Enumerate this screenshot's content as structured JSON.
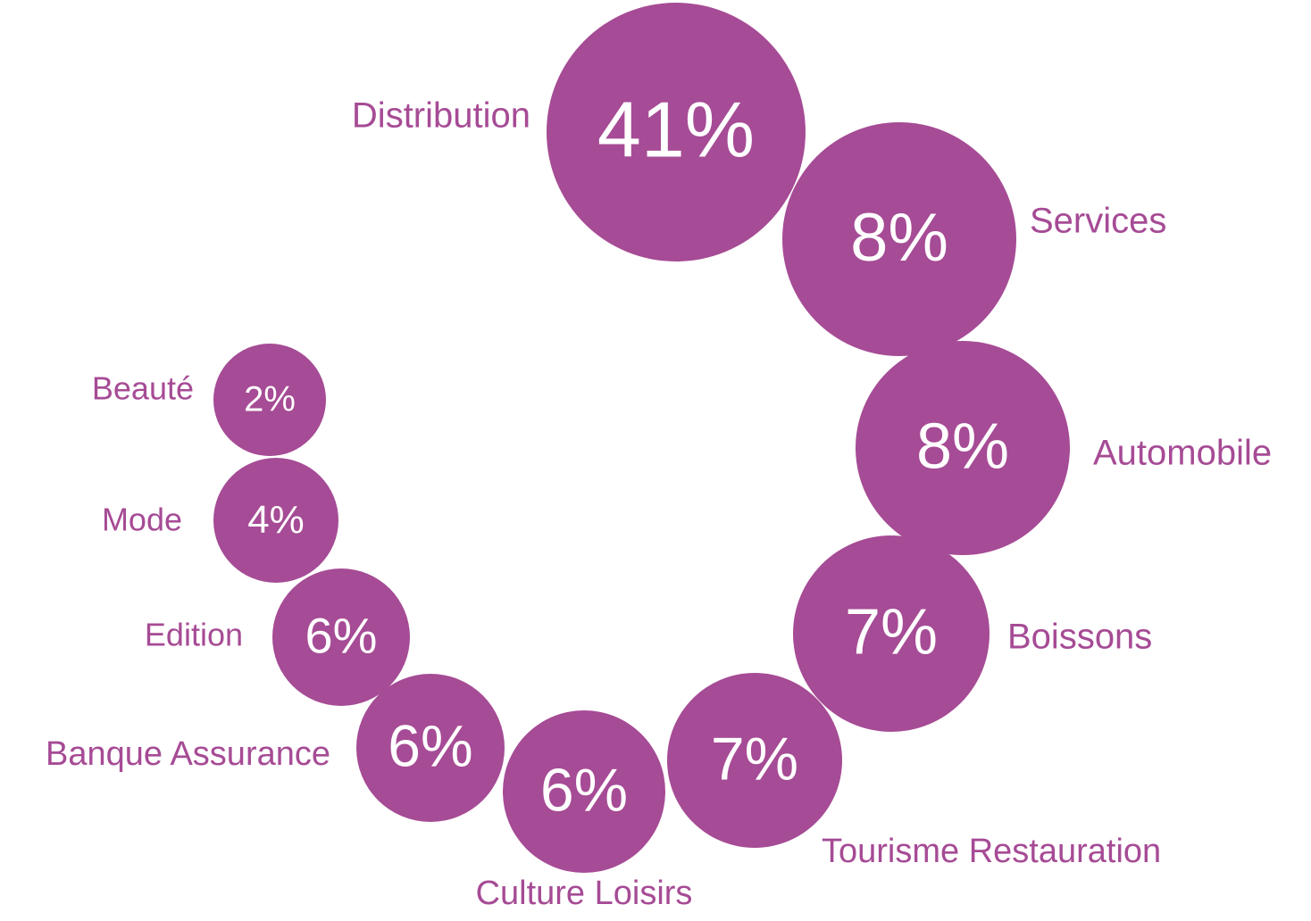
{
  "chart_data": {
    "type": "bubble",
    "categories": [
      "Distribution",
      "Services",
      "Automobile",
      "Boissons",
      "Tourisme Restauration",
      "Culture Loisirs",
      "Banque Assurance",
      "Edition",
      "Mode",
      "Beauté"
    ],
    "values": [
      41,
      8,
      8,
      7,
      7,
      6,
      6,
      6,
      4,
      2
    ],
    "value_labels": [
      "41%",
      "8%",
      "8%",
      "7%",
      "7%",
      "6%",
      "6%",
      "6%",
      "4%",
      "2%"
    ],
    "color": "#a64b95"
  }
}
